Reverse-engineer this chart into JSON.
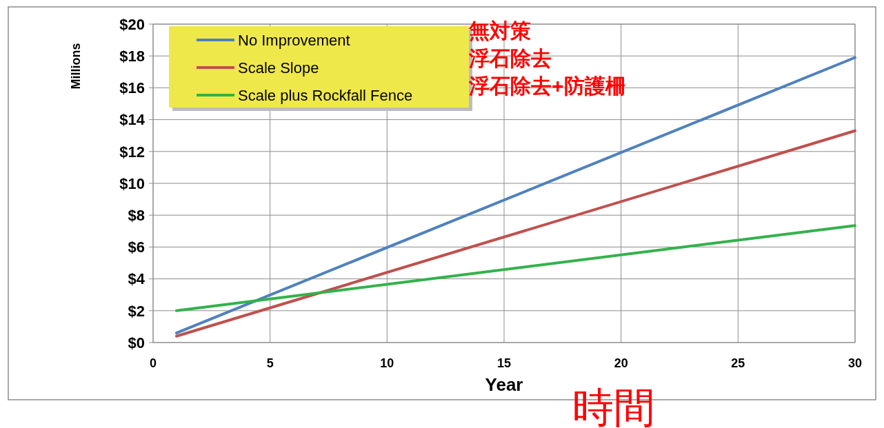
{
  "chart_data": {
    "type": "line",
    "xlabel": "Year",
    "ylabel": "Millions",
    "xlim": [
      0,
      30
    ],
    "ylim": [
      0,
      20
    ],
    "xticks": [
      0,
      5,
      10,
      15,
      20,
      25,
      30
    ],
    "yticks": [
      {
        "value": 0,
        "label": "$0"
      },
      {
        "value": 2,
        "label": "$2"
      },
      {
        "value": 4,
        "label": "$4"
      },
      {
        "value": 6,
        "label": "$6"
      },
      {
        "value": 8,
        "label": "$8"
      },
      {
        "value": 10,
        "label": "$10"
      },
      {
        "value": 12,
        "label": "$12"
      },
      {
        "value": 14,
        "label": "$14"
      },
      {
        "value": 16,
        "label": "$16"
      },
      {
        "value": 18,
        "label": "$18"
      },
      {
        "value": 20,
        "label": "$20"
      }
    ],
    "grid": true,
    "legend": "top left",
    "marker": "none",
    "line_style": "solid",
    "x": [
      1,
      30
    ],
    "series": [
      {
        "name": "No Improvement",
        "color": "#4f81bd",
        "values": [
          0.6,
          17.9
        ]
      },
      {
        "name": "Scale Slope",
        "color": "#c0504d",
        "values": [
          0.4,
          13.3
        ]
      },
      {
        "name": "Scale plus Rockfall Fence",
        "color": "#33b24a",
        "values": [
          2.0,
          7.35
        ]
      }
    ],
    "annotations": [
      "無対策",
      "浮石除去",
      "浮石除去+防護柵",
      "時間"
    ]
  }
}
